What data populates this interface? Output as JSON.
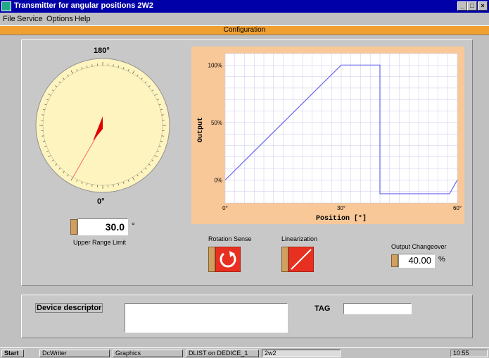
{
  "window": {
    "title": "Transmitter for angular positions 2W2",
    "controls": [
      "_",
      "□",
      "×"
    ]
  },
  "menu": [
    "File",
    "Service",
    "Options",
    "Help"
  ],
  "tab": {
    "label": "Configuration"
  },
  "dial": {
    "top_label": "180°",
    "bottom_label": "0°",
    "value": "30.0",
    "unit": "°",
    "caption": "Upper Range Limit"
  },
  "chart_data": {
    "type": "line",
    "xlabel": "Position [°]",
    "ylabel": "Output",
    "x_ticks": [
      "0°",
      "30°",
      "60°"
    ],
    "y_ticks": [
      "0%",
      "50%",
      "100%"
    ],
    "xlim": [
      0,
      60
    ],
    "ylim": [
      -20,
      110
    ],
    "grid": true,
    "series": [
      {
        "x": [
          0,
          30,
          40,
          40,
          58,
          60
        ],
        "y": [
          0,
          100,
          100,
          -12,
          -12,
          0
        ]
      }
    ],
    "colors": {
      "background": "#f8c898",
      "plot": "#ffffff",
      "line": "#6666ee",
      "grid": "#c8c8f0"
    }
  },
  "controls": {
    "rotation_label": "Rotation Sense",
    "linearization_label": "Linearization",
    "changeover_label": "Output Changeover",
    "changeover_value": "40.00",
    "changeover_unit": "%"
  },
  "bottom": {
    "descriptor_label": "Device descriptor",
    "descriptor_value": "",
    "tag_label": "TAG",
    "tag_value": ""
  },
  "taskbar": {
    "start": "Start",
    "tasks": [
      "DcWriter",
      "Graphics",
      "DLIST on DEDICE_1",
      "2w2"
    ],
    "clock": "10:55"
  }
}
